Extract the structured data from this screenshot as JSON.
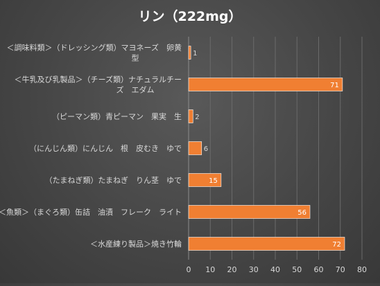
{
  "chart_data": {
    "type": "bar",
    "orientation": "horizontal",
    "title": "リン（222mg）",
    "categories": [
      [
        "＜調味料類＞（ドレッシング類）マヨネーズ　卵黄",
        "型"
      ],
      [
        "＜牛乳及び乳製品＞（チーズ類）ナチュラルチー",
        "ズ　エダム"
      ],
      [
        "（ピーマン類）青ピーマン　果実　生"
      ],
      [
        "（にんじん類）にんじん　根　皮むき　ゆで"
      ],
      [
        "（たまねぎ類）たまねぎ　りん茎　ゆで"
      ],
      [
        "＜魚類＞（まぐろ類）缶詰　油漬　フレーク　ライト"
      ],
      [
        "＜水産練り製品＞焼き竹輪"
      ]
    ],
    "values": [
      1,
      71,
      2,
      6,
      15,
      56,
      72
    ],
    "xlim": [
      0,
      80
    ],
    "xticks": [
      0,
      10,
      20,
      30,
      40,
      50,
      60,
      70,
      80
    ],
    "grid": true,
    "colors": {
      "bar": "#f07f32",
      "bar_edge": "#ffffff"
    }
  }
}
